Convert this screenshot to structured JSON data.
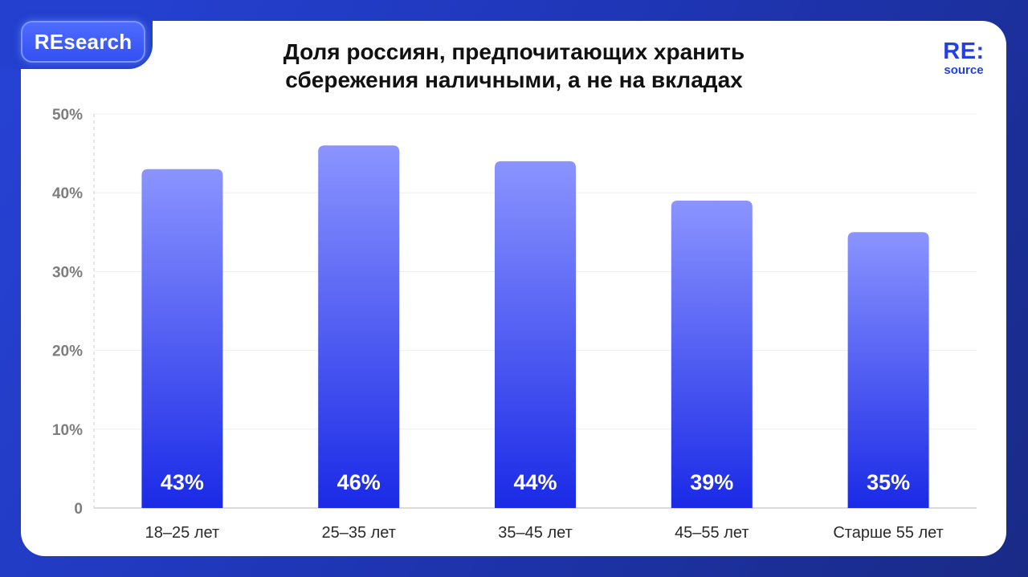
{
  "brand": {
    "badge": "REsearch",
    "logo_main": "RE:",
    "logo_sub": "source",
    "accent": "#2340e6"
  },
  "chart_data": {
    "type": "bar",
    "title_line1": "Доля россиян, предпочитающих хранить",
    "title_line2": "сбережения наличными, а не на вкладах",
    "categories": [
      "18–25 лет",
      "25–35 лет",
      "35–45 лет",
      "45–55 лет",
      "Старше 55 лет"
    ],
    "values": [
      43,
      46,
      44,
      39,
      35
    ],
    "data_labels": [
      "43%",
      "46%",
      "44%",
      "39%",
      "35%"
    ],
    "ylim": [
      0,
      50
    ],
    "yticks": [
      0,
      10,
      20,
      30,
      40,
      50
    ],
    "ytick_labels": [
      "0",
      "10%",
      "20%",
      "30%",
      "40%",
      "50%"
    ],
    "grid": true,
    "bar_color_top": "#8b94ff",
    "bar_color_bottom": "#1a2ae6"
  }
}
